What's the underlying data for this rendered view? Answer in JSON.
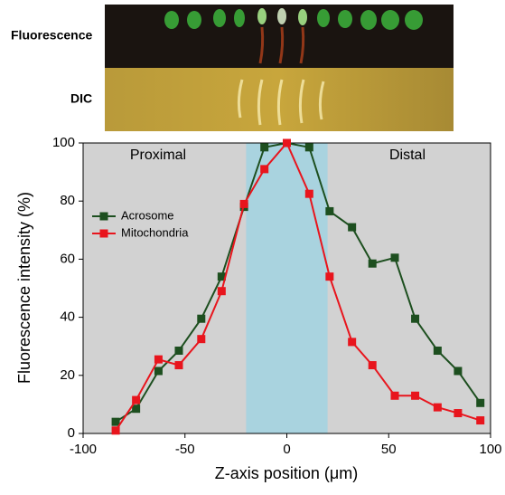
{
  "image_panel": {
    "rows": [
      "Fluorescence",
      "DIC"
    ]
  },
  "chart_data": {
    "type": "line",
    "xlabel": "Z-axis position (μm)",
    "ylabel": "Fluorescence intensity (%)",
    "annotations": [
      "Proximal",
      "Distal"
    ],
    "highlight": {
      "from": -20,
      "to": 20,
      "color": "#a9d3df"
    },
    "background": "#d2d2d2",
    "legend": "upper left",
    "xlim": [
      -100,
      100
    ],
    "xticks": [
      -100,
      -50,
      0,
      50,
      100
    ],
    "ylim": [
      0,
      100
    ],
    "yticks": [
      0,
      20,
      40,
      60,
      80,
      100
    ],
    "series": [
      {
        "name": "Acrosome",
        "color": "#1d4f1f",
        "x": [
          -84,
          -74,
          -63,
          -53,
          -42,
          -32,
          -21,
          -11,
          0,
          11,
          21,
          32,
          42,
          53,
          63,
          74,
          84,
          95
        ],
        "values": [
          4,
          8.5,
          21.5,
          28.5,
          39.5,
          54,
          78,
          98.5,
          100,
          98.5,
          76.5,
          71,
          58.5,
          60.5,
          39.5,
          28.5,
          21.5,
          10.5
        ]
      },
      {
        "name": "Mitochondria",
        "color": "#e8151d",
        "x": [
          -84,
          -74,
          -63,
          -53,
          -42,
          -32,
          -21,
          -11,
          0,
          11,
          21,
          32,
          42,
          53,
          63,
          74,
          84,
          95
        ],
        "values": [
          1,
          11.5,
          25.5,
          23.5,
          32.5,
          49,
          79,
          91,
          100,
          82.5,
          54,
          31.5,
          23.5,
          13,
          13,
          9,
          7,
          4.5
        ]
      }
    ]
  }
}
